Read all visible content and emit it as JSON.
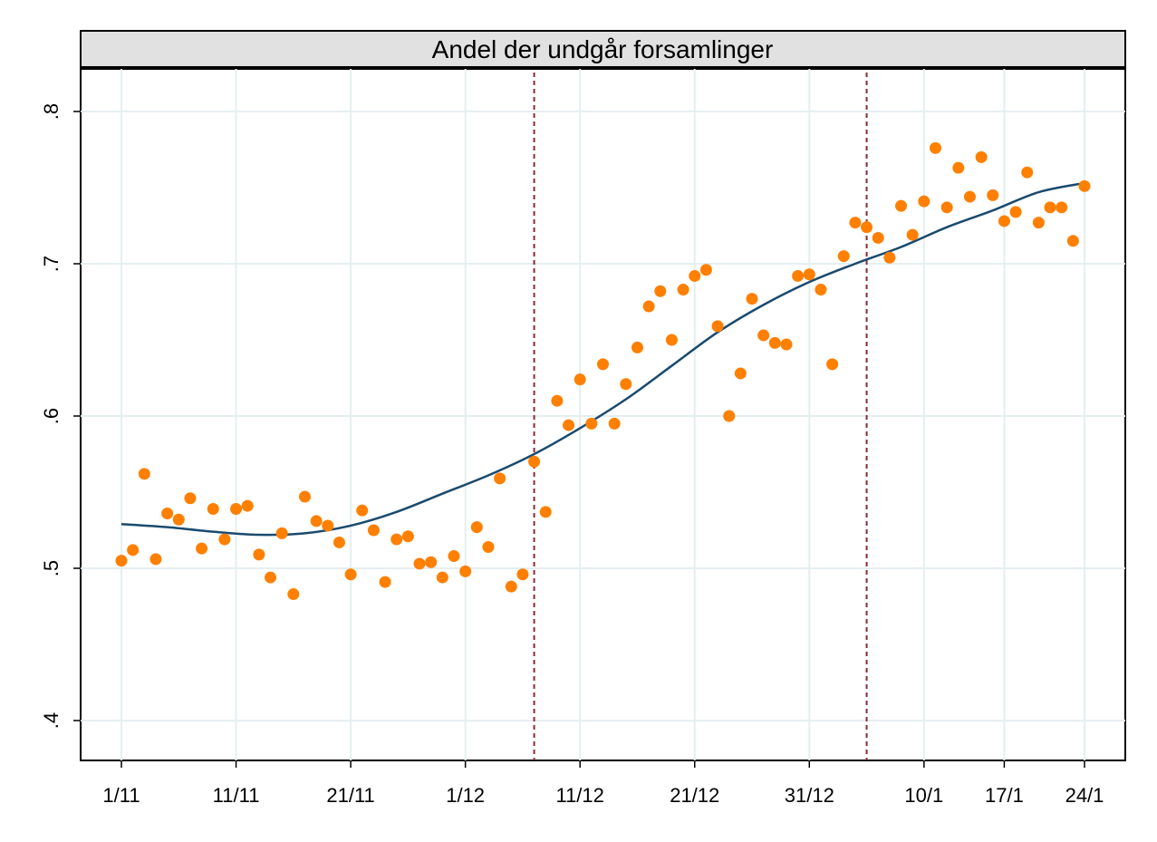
{
  "chart_data": {
    "type": "scatter",
    "title": "Andel der undgår forsamlinger",
    "xlabel": "",
    "ylabel": "",
    "x_start_date": "1/11",
    "xlim": [
      0,
      84
    ],
    "ylim": [
      0.37,
      0.83
    ],
    "y_ticks": [
      0.4,
      0.5,
      0.6,
      0.7,
      0.8
    ],
    "y_tick_labels": [
      ".4",
      ".5",
      ".6",
      ".7",
      ".8"
    ],
    "x_ticks": [
      0,
      10,
      20,
      30,
      40,
      50,
      60,
      70,
      77,
      84
    ],
    "x_tick_labels": [
      "1/11",
      "11/11",
      "21/11",
      "1/12",
      "11/12",
      "21/12",
      "31/12",
      "10/1",
      "17/1",
      "24/1"
    ],
    "grid": true,
    "reference_lines_x": [
      36,
      65
    ],
    "series": [
      {
        "name": "",
        "type": "scatter",
        "color": "#ff7f00",
        "x": [
          0,
          1,
          2,
          3,
          4,
          5,
          6,
          7,
          8,
          9,
          10,
          11,
          12,
          13,
          14,
          15,
          16,
          17,
          18,
          19,
          20,
          21,
          22,
          23,
          24,
          25,
          26,
          27,
          28,
          29,
          30,
          31,
          32,
          33,
          34,
          35,
          36,
          37,
          38,
          39,
          40,
          41,
          42,
          43,
          44,
          45,
          46,
          47,
          48,
          49,
          50,
          51,
          52,
          53,
          54,
          55,
          56,
          57,
          58,
          59,
          60,
          61,
          62,
          63,
          64,
          65,
          66,
          67,
          68,
          69,
          70,
          71,
          72,
          73,
          74,
          75,
          76,
          77,
          78,
          79,
          80,
          81,
          82,
          83,
          84
        ],
        "y": [
          0.505,
          0.512,
          0.562,
          0.506,
          0.536,
          0.532,
          0.546,
          0.513,
          0.539,
          0.519,
          0.539,
          0.541,
          0.509,
          0.494,
          0.523,
          0.483,
          0.547,
          0.531,
          0.528,
          0.517,
          0.496,
          0.538,
          0.525,
          0.491,
          0.519,
          0.521,
          0.503,
          0.504,
          0.494,
          0.508,
          0.498,
          0.527,
          0.514,
          0.559,
          0.488,
          0.496,
          0.57,
          0.537,
          0.61,
          0.594,
          0.624,
          0.595,
          0.634,
          0.595,
          0.621,
          0.645,
          0.672,
          0.682,
          0.65,
          0.683,
          0.692,
          0.696,
          0.659,
          0.6,
          0.628,
          0.677,
          0.653,
          0.648,
          0.647,
          0.692,
          0.693,
          0.683,
          0.634,
          0.705,
          0.727,
          0.724,
          0.717,
          0.704,
          0.738,
          0.719,
          0.741,
          0.776,
          0.737,
          0.763,
          0.744,
          0.77,
          0.745,
          0.728,
          0.734,
          0.76,
          0.727,
          0.737,
          0.737,
          0.715,
          0.751
        ]
      },
      {
        "name": "",
        "type": "line",
        "color": "#1a4a6e",
        "x": [
          0,
          4,
          8,
          12,
          16,
          20,
          24,
          28,
          32,
          36,
          40,
          44,
          48,
          52,
          56,
          60,
          64,
          68,
          72,
          76,
          80,
          84
        ],
        "y": [
          0.529,
          0.527,
          0.524,
          0.522,
          0.523,
          0.528,
          0.537,
          0.549,
          0.561,
          0.575,
          0.592,
          0.611,
          0.633,
          0.655,
          0.673,
          0.688,
          0.7,
          0.711,
          0.724,
          0.735,
          0.747,
          0.753
        ]
      }
    ]
  }
}
